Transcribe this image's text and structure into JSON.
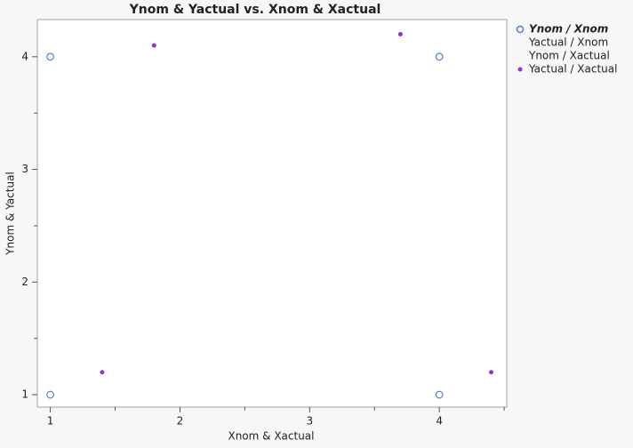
{
  "chart_data": {
    "type": "scatter",
    "title": "Ynom & Yactual vs. Xnom & Xactual",
    "x_label": "Xnom & Xactual",
    "y_label": "Ynom & Yactual",
    "xlim": [
      0.9,
      4.52
    ],
    "ylim": [
      0.89,
      4.33
    ],
    "xticks": [
      1,
      2,
      3,
      4
    ],
    "yticks": [
      1,
      2,
      3,
      4
    ],
    "xminorticks": [
      1.5,
      2.5,
      3.5,
      4.5
    ],
    "yminorticks": [
      1.5,
      2.5,
      3.5
    ],
    "series": [
      {
        "name": "Ynom / Xnom",
        "color": "#4f7fc4",
        "marker": "open",
        "x": [
          1,
          4,
          1,
          4
        ],
        "values": [
          4,
          4,
          1,
          1
        ]
      },
      {
        "name": "Yactual / Xnom",
        "color": "#9b30d0",
        "marker": "none",
        "x": [],
        "values": []
      },
      {
        "name": "Ynom / Xactual",
        "color": "#4f7fc4",
        "marker": "none",
        "x": [],
        "values": []
      },
      {
        "name": "Yactual / Xactual",
        "color": "#9b30d0",
        "marker": "filled",
        "x": [
          1.4,
          1.8,
          3.7,
          4.4
        ],
        "values": [
          1.2,
          4.1,
          4.2,
          1.2
        ]
      }
    ]
  }
}
